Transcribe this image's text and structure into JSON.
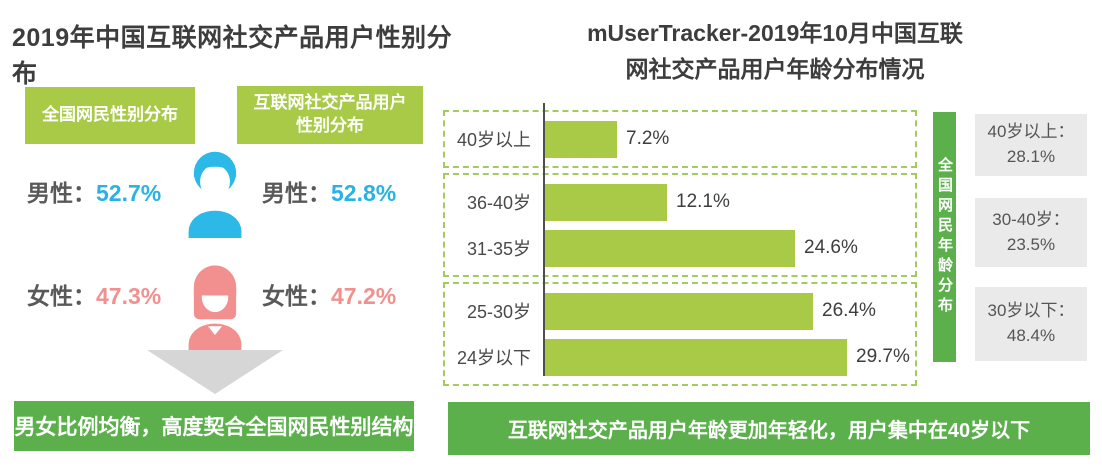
{
  "left": {
    "title": "2019年中国互联网社交产品用户性别分布",
    "column_headers": {
      "national": "全国网民性别分布",
      "social_line1": "互联网社交产品用户",
      "social_line2": "性别分布"
    },
    "national": {
      "male_label": "男性：",
      "male_value": "52.7%",
      "female_label": "女性：",
      "female_value": "47.3%"
    },
    "social": {
      "male_label": "男性：",
      "male_value": "52.8%",
      "female_label": "女性：",
      "female_value": "47.2%"
    },
    "banner": "男女比例均衡，高度契合全国网民性别结构"
  },
  "right": {
    "title_line1": "mUserTracker-2019年10月中国互联",
    "title_line2": "网社交产品用户年龄分布情况",
    "side_label": "全国网民年龄分布",
    "side_boxes": [
      "40岁以上：28.1%",
      "30-40岁：23.5%",
      "30岁以下：48.4%"
    ],
    "banner": "互联网社交产品用户年龄更加年轻化，用户集中在40岁以下"
  },
  "chart_data": {
    "type": "bar",
    "orientation": "horizontal",
    "title": "mUserTracker-2019年10月中国互联网社交产品用户年龄分布情况",
    "categories": [
      "40岁以上",
      "36-40岁",
      "31-35岁",
      "25-30岁",
      "24岁以下"
    ],
    "values": [
      7.2,
      12.1,
      24.6,
      26.4,
      29.7
    ],
    "labels": [
      "7.2%",
      "12.1%",
      "24.6%",
      "26.4%",
      "29.7%"
    ],
    "group_boxes": [
      [
        0
      ],
      [
        1,
        2
      ],
      [
        3,
        4
      ]
    ],
    "xlim": [
      0,
      35
    ],
    "grid": false,
    "reference_series": {
      "name": "全国网民年龄分布",
      "items": [
        {
          "range": "40岁以上",
          "value": 28.1
        },
        {
          "range": "30-40岁",
          "value": 23.5
        },
        {
          "range": "30岁以下",
          "value": 48.4
        }
      ]
    },
    "gender_data": {
      "national": {
        "male": 52.7,
        "female": 47.3
      },
      "social_products": {
        "male": 52.8,
        "female": 47.2
      }
    }
  },
  "colors": {
    "bar_green": "#a8ca47",
    "banner_green": "#5bb04b",
    "dashed_border": "#a3cb5e",
    "male_blue": "#29b2e4",
    "female_pink": "#f0908f",
    "title_text": "#3d3d3d",
    "label_gray": "#595959",
    "arrow_gray": "#d6d6d6",
    "ref_box_gray": "#eaeaea"
  }
}
